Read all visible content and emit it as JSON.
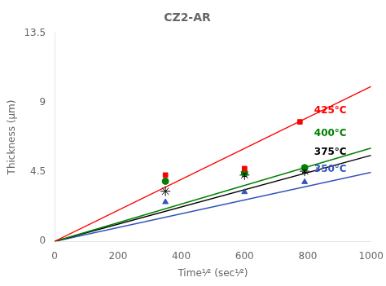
{
  "chart_data": {
    "type": "scatter",
    "title": "CZ2-AR",
    "x_label": "Time¹⁄² (sec¹⁄²)",
    "y_label": "Thickness (μm)",
    "xlim": [
      0,
      1000
    ],
    "ylim": [
      0,
      13.5
    ],
    "xticks": [
      0,
      200,
      400,
      600,
      800,
      1000
    ],
    "yticks": [
      0,
      4.5,
      9,
      13.5
    ],
    "grid": false,
    "series": [
      {
        "type": "line",
        "color": "red",
        "x": [
          0,
          1000
        ],
        "values": [
          0,
          10.05
        ]
      },
      {
        "type": "line",
        "color": "green",
        "x": [
          0,
          1000
        ],
        "values": [
          0,
          6.05
        ]
      },
      {
        "type": "line",
        "color": "black",
        "x": [
          0,
          1000
        ],
        "values": [
          0,
          5.58
        ]
      },
      {
        "type": "line",
        "color": "#3355bb",
        "x": [
          0,
          1000
        ],
        "values": [
          0,
          4.48
        ]
      },
      {
        "type": "scatter",
        "color": "red",
        "marker": "square",
        "x": [
          350,
          600,
          775
        ],
        "values": [
          4.3,
          4.72,
          7.75
        ],
        "yerr": [
          0.06,
          0.06,
          0.07
        ]
      },
      {
        "type": "scatter",
        "color": "green",
        "marker": "circle",
        "x": [
          350,
          600,
          790
        ],
        "values": [
          3.9,
          4.44,
          4.78
        ]
      },
      {
        "type": "scatter",
        "color": "black",
        "marker": "star",
        "x": [
          350,
          600,
          790
        ],
        "values": [
          3.25,
          4.3,
          4.55
        ],
        "yerr": [
          0,
          0.09,
          0.07
        ]
      },
      {
        "type": "scatter",
        "color": "#3355bb",
        "marker": "triangle",
        "x": [
          350,
          600,
          790
        ],
        "values": [
          2.55,
          3.2,
          3.85
        ]
      }
    ],
    "annotations": [
      {
        "x": 820,
        "y": 8.45,
        "color": "red",
        "text": "425°C"
      },
      {
        "x": 820,
        "y": 7.0,
        "color": "green",
        "text": "400°C"
      },
      {
        "x": 820,
        "y": 5.8,
        "color": "black",
        "text": "375°C"
      },
      {
        "x": 820,
        "y": 4.65,
        "color": "#3355bb",
        "text": "350°C"
      }
    ]
  }
}
